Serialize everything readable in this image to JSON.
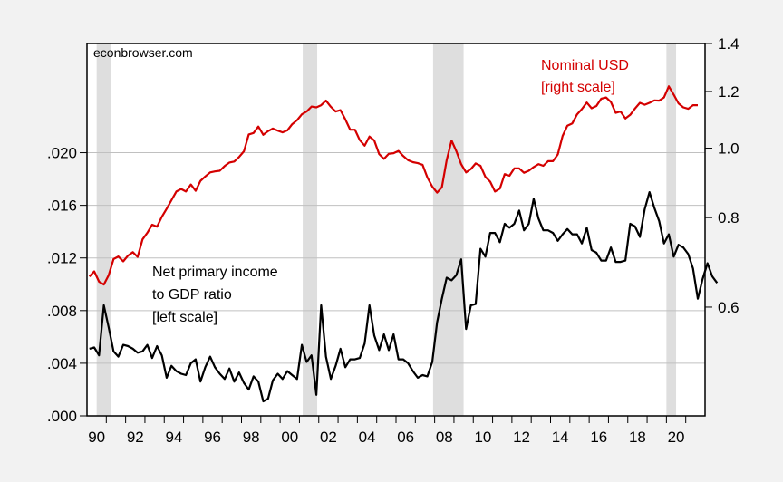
{
  "chart_data": {
    "type": "line",
    "title": "",
    "source_note": "econbrowser.com",
    "x_start": "1990Q1",
    "frequency": "quarterly",
    "x_ticks": [
      "90",
      "92",
      "94",
      "96",
      "98",
      "00",
      "02",
      "04",
      "06",
      "08",
      "10",
      "12",
      "14",
      "16",
      "18",
      "20"
    ],
    "xlim": [
      1990.0,
      2022.0
    ],
    "left_axis": {
      "ticks": [
        ".000",
        ".004",
        ".008",
        ".012",
        ".016",
        ".020"
      ],
      "tick_values": [
        0.0,
        0.004,
        0.008,
        0.012,
        0.016,
        0.02
      ],
      "ylim": [
        0.0,
        0.0283
      ],
      "grid": true
    },
    "right_axis": {
      "scale": "log",
      "ticks": [
        "0.6",
        "0.8",
        "1.0",
        "1.2",
        "1.4"
      ],
      "tick_values": [
        0.6,
        0.8,
        1.0,
        1.2,
        1.4
      ],
      "ylim": [
        0.423,
        1.4
      ]
    },
    "recessions": [
      [
        1990.5,
        1991.25
      ],
      [
        2001.17,
        2001.92
      ],
      [
        2007.92,
        2009.5
      ],
      [
        2020.0,
        2020.5
      ]
    ],
    "series": [
      {
        "name": "Net primary income to GDP ratio",
        "axis": "left",
        "color": "#000000",
        "annotation": [
          "Net primary income",
          "to GDP ratio",
          "[left scale]"
        ],
        "values": [
          0.0051,
          0.0052,
          0.0046,
          0.0084,
          0.0067,
          0.0049,
          0.0045,
          0.0054,
          0.0053,
          0.0051,
          0.0048,
          0.0049,
          0.0054,
          0.0044,
          0.0053,
          0.0046,
          0.0029,
          0.0038,
          0.0034,
          0.0032,
          0.0031,
          0.004,
          0.0043,
          0.0026,
          0.0037,
          0.0045,
          0.0037,
          0.0032,
          0.0028,
          0.0036,
          0.0026,
          0.0033,
          0.0025,
          0.002,
          0.003,
          0.0026,
          0.0011,
          0.0013,
          0.0027,
          0.0032,
          0.0028,
          0.0034,
          0.0031,
          0.0028,
          0.0054,
          0.0041,
          0.0046,
          0.0016,
          0.0084,
          0.0045,
          0.0028,
          0.0038,
          0.0051,
          0.0037,
          0.0043,
          0.0043,
          0.0044,
          0.0055,
          0.0084,
          0.0061,
          0.005,
          0.0062,
          0.005,
          0.0062,
          0.0043,
          0.0043,
          0.004,
          0.0034,
          0.0029,
          0.0031,
          0.003,
          0.0041,
          0.0071,
          0.0089,
          0.0105,
          0.0103,
          0.0107,
          0.0119,
          0.0066,
          0.0084,
          0.0085,
          0.0127,
          0.0121,
          0.0139,
          0.0139,
          0.0132,
          0.0146,
          0.0143,
          0.0146,
          0.0156,
          0.0141,
          0.0146,
          0.0165,
          0.015,
          0.0141,
          0.0141,
          0.0139,
          0.0133,
          0.0138,
          0.0142,
          0.0138,
          0.0138,
          0.0131,
          0.0143,
          0.0126,
          0.0124,
          0.0118,
          0.0118,
          0.0128,
          0.0117,
          0.0117,
          0.0118,
          0.0146,
          0.0144,
          0.0136,
          0.0157,
          0.017,
          0.0158,
          0.0148,
          0.0131,
          0.0138,
          0.0121,
          0.013,
          0.0128,
          0.0123,
          0.0112,
          0.0089,
          0.0104,
          0.0116,
          0.0106,
          0.0101
        ]
      },
      {
        "name": "Nominal USD",
        "axis": "right",
        "color": "#d40000",
        "annotation": [
          "Nominal USD",
          "[right scale]"
        ],
        "values": [
          0.662,
          0.673,
          0.651,
          0.645,
          0.665,
          0.7,
          0.706,
          0.695,
          0.708,
          0.716,
          0.705,
          0.746,
          0.762,
          0.782,
          0.777,
          0.802,
          0.823,
          0.846,
          0.87,
          0.877,
          0.87,
          0.89,
          0.872,
          0.9,
          0.913,
          0.925,
          0.928,
          0.93,
          0.944,
          0.955,
          0.958,
          0.972,
          0.99,
          1.045,
          1.05,
          1.072,
          1.044,
          1.056,
          1.065,
          1.058,
          1.052,
          1.059,
          1.08,
          1.094,
          1.115,
          1.125,
          1.143,
          1.14,
          1.148,
          1.165,
          1.142,
          1.125,
          1.13,
          1.097,
          1.061,
          1.061,
          1.026,
          1.008,
          1.038,
          1.025,
          0.981,
          0.966,
          0.982,
          0.984,
          0.991,
          0.975,
          0.962,
          0.956,
          0.953,
          0.948,
          0.91,
          0.884,
          0.867,
          0.882,
          0.962,
          1.025,
          0.99,
          0.95,
          0.925,
          0.935,
          0.952,
          0.945,
          0.912,
          0.898,
          0.87,
          0.878,
          0.92,
          0.915,
          0.937,
          0.937,
          0.924,
          0.93,
          0.941,
          0.95,
          0.945,
          0.959,
          0.959,
          0.98,
          1.04,
          1.075,
          1.083,
          1.115,
          1.134,
          1.158,
          1.137,
          1.145,
          1.172,
          1.177,
          1.16,
          1.12,
          1.125,
          1.1,
          1.113,
          1.136,
          1.157,
          1.15,
          1.157,
          1.166,
          1.165,
          1.177,
          1.22,
          1.188,
          1.155,
          1.14,
          1.135,
          1.148,
          1.148
        ]
      }
    ]
  }
}
